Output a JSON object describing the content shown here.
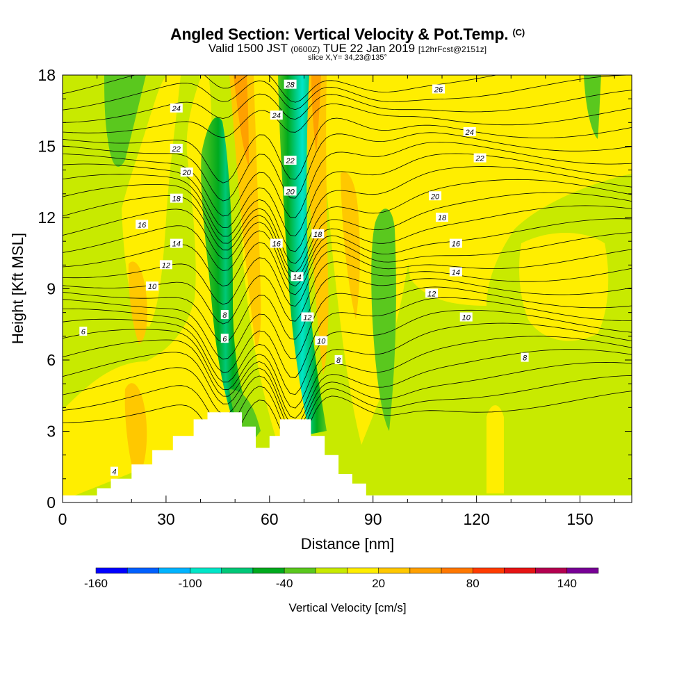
{
  "header": {
    "title": "Angled Section: Vertical Velocity & Pot.Temp.",
    "title_units": "(C)",
    "valid_prefix": "Valid 1500 JST",
    "valid_utc": "(0600Z)",
    "valid_date": "TUE 22 Jan 2019",
    "forecast": "[12hrFcst@2151z]",
    "slice": "slice X,Y= 34,23@135°"
  },
  "chart_data": {
    "type": "heatmap",
    "xlabel": "Distance [nm]",
    "ylabel": "Height [Kft MSL]",
    "xlim": [
      0,
      165
    ],
    "ylim": [
      0,
      18
    ],
    "xticks": [
      0,
      30,
      60,
      90,
      120,
      150
    ],
    "yticks": [
      0,
      3,
      6,
      9,
      12,
      15,
      18
    ],
    "colorbar": {
      "label": "Vertical Velocity [cm/s]",
      "tick_labels": [
        "-160",
        "-100",
        "-40",
        "20",
        "80",
        "140"
      ],
      "tick_values": [
        -160,
        -100,
        -40,
        20,
        80,
        140
      ],
      "bounds": [
        -160,
        -140,
        -120,
        -100,
        -80,
        -60,
        -40,
        -20,
        0,
        20,
        40,
        60,
        80,
        100,
        120,
        140,
        160
      ],
      "colors": [
        "#0000ff",
        "#0060ff",
        "#00b4ff",
        "#00e6c8",
        "#00c878",
        "#00aa1e",
        "#5ac81e",
        "#c8ea00",
        "#ffee00",
        "#ffc800",
        "#ffa000",
        "#ff7800",
        "#ff3c00",
        "#e61414",
        "#b40050",
        "#780096"
      ]
    },
    "vertical_velocity_features": [
      {
        "distance": 47,
        "height_range": [
          4,
          16
        ],
        "sign": "downward",
        "peak_cm_s": -70
      },
      {
        "distance": 67,
        "height_range": [
          3,
          18
        ],
        "sign": "downward",
        "peak_cm_s": -100
      },
      {
        "distance": 74,
        "height_range": [
          5,
          18
        ],
        "sign": "upward",
        "peak_cm_s": 50
      },
      {
        "distance": 55,
        "height_range": [
          5,
          18
        ],
        "sign": "upward",
        "peak_cm_s": 60
      },
      {
        "distance": 93,
        "height_range": [
          3,
          12
        ],
        "sign": "downward",
        "peak_cm_s": -40
      }
    ],
    "terrain": [
      [
        0,
        0.3
      ],
      [
        10,
        0.3
      ],
      [
        10,
        0.6
      ],
      [
        14,
        0.6
      ],
      [
        14,
        1.0
      ],
      [
        20,
        1.0
      ],
      [
        20,
        1.6
      ],
      [
        26,
        1.6
      ],
      [
        26,
        2.2
      ],
      [
        32,
        2.2
      ],
      [
        32,
        2.8
      ],
      [
        38,
        2.8
      ],
      [
        38,
        3.5
      ],
      [
        42,
        3.5
      ],
      [
        42,
        3.8
      ],
      [
        52,
        3.8
      ],
      [
        52,
        3.2
      ],
      [
        56,
        3.2
      ],
      [
        56,
        2.3
      ],
      [
        60,
        2.3
      ],
      [
        60,
        2.8
      ],
      [
        63,
        2.8
      ],
      [
        63,
        3.5
      ],
      [
        72,
        3.5
      ],
      [
        72,
        2.8
      ],
      [
        76,
        2.8
      ],
      [
        76,
        2.0
      ],
      [
        80,
        2.0
      ],
      [
        80,
        1.2
      ],
      [
        84,
        1.2
      ],
      [
        84,
        0.8
      ],
      [
        88,
        0.8
      ],
      [
        88,
        0.3
      ],
      [
        165,
        0.3
      ]
    ],
    "potential_temperature_labels": [
      {
        "text": "28",
        "x": 66,
        "y": 17.6
      },
      {
        "text": "26",
        "x": 109,
        "y": 17.4
      },
      {
        "text": "24",
        "x": 33,
        "y": 16.6
      },
      {
        "text": "24",
        "x": 62,
        "y": 16.3
      },
      {
        "text": "24",
        "x": 118,
        "y": 15.6
      },
      {
        "text": "22",
        "x": 33,
        "y": 14.9
      },
      {
        "text": "22",
        "x": 66,
        "y": 14.4
      },
      {
        "text": "22",
        "x": 121,
        "y": 14.5
      },
      {
        "text": "20",
        "x": 36,
        "y": 13.9
      },
      {
        "text": "20",
        "x": 66,
        "y": 13.1
      },
      {
        "text": "20",
        "x": 108,
        "y": 12.9
      },
      {
        "text": "18",
        "x": 33,
        "y": 12.8
      },
      {
        "text": "18",
        "x": 74,
        "y": 11.3
      },
      {
        "text": "18",
        "x": 110,
        "y": 12.0
      },
      {
        "text": "16",
        "x": 23,
        "y": 11.7
      },
      {
        "text": "16",
        "x": 62,
        "y": 10.9
      },
      {
        "text": "16",
        "x": 114,
        "y": 10.9
      },
      {
        "text": "14",
        "x": 33,
        "y": 10.9
      },
      {
        "text": "14",
        "x": 68,
        "y": 9.5
      },
      {
        "text": "14",
        "x": 114,
        "y": 9.7
      },
      {
        "text": "12",
        "x": 30,
        "y": 10.0
      },
      {
        "text": "12",
        "x": 71,
        "y": 7.8
      },
      {
        "text": "12",
        "x": 107,
        "y": 8.8
      },
      {
        "text": "10",
        "x": 26,
        "y": 9.1
      },
      {
        "text": "10",
        "x": 75,
        "y": 6.8
      },
      {
        "text": "10",
        "x": 117,
        "y": 7.8
      },
      {
        "text": "8",
        "x": 47,
        "y": 7.9
      },
      {
        "text": "8",
        "x": 80,
        "y": 6.0
      },
      {
        "text": "8",
        "x": 134,
        "y": 6.1
      },
      {
        "text": "6",
        "x": 6,
        "y": 7.2
      },
      {
        "text": "6",
        "x": 47,
        "y": 6.9
      },
      {
        "text": "4",
        "x": 15,
        "y": 1.3
      }
    ]
  }
}
